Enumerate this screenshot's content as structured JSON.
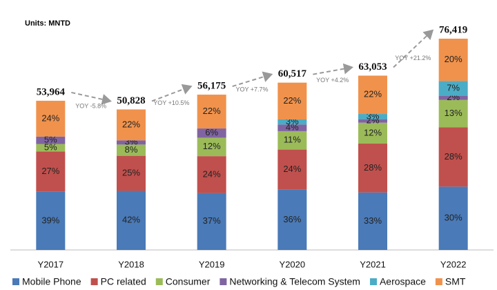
{
  "chart_data": {
    "type": "stacked-bar",
    "title": "Units: MNTD",
    "categories": [
      "Y2017",
      "Y2018",
      "Y2019",
      "Y2020",
      "Y2021",
      "Y2022"
    ],
    "totals": {
      "values": [
        53964,
        50828,
        56175,
        60517,
        63053,
        76419
      ],
      "value_labels": [
        "53,964",
        "50,828",
        "56,175",
        "60,517",
        "63,053",
        "76,419"
      ]
    },
    "annotations": [
      "YOY -5.8%",
      "YOY +10.5%",
      "YOY +7.7%",
      "YOY +4.2%",
      "YOY +21.2%"
    ],
    "series": [
      {
        "name": "Mobile Phone",
        "color": "#4a7ab7",
        "values": [
          39,
          42,
          37,
          36,
          33,
          30
        ],
        "value_labels": [
          "39%",
          "42%",
          "37%",
          "36%",
          "33%",
          "30%"
        ]
      },
      {
        "name": "PC related",
        "color": "#c0504d",
        "values": [
          27,
          25,
          24,
          24,
          28,
          28
        ],
        "value_labels": [
          "27%",
          "25%",
          "24%",
          "24%",
          "28%",
          "28%"
        ]
      },
      {
        "name": "Consumer",
        "color": "#9bbb59",
        "values": [
          5,
          8,
          12,
          11,
          12,
          13
        ],
        "value_labels": [
          "5%",
          "8%",
          "12%",
          "11%",
          "12%",
          "13%"
        ]
      },
      {
        "name": "Networking & Telecom System",
        "color": "#8064a2",
        "values": [
          5,
          3,
          6,
          4,
          2,
          2
        ],
        "value_labels": [
          "5%",
          "3%",
          "6%",
          "4%",
          "2%",
          "2%"
        ]
      },
      {
        "name": "Aerospace",
        "color": "#4bacc6",
        "values": [
          null,
          null,
          null,
          3,
          3,
          7
        ],
        "value_labels": [
          null,
          null,
          null,
          "3%",
          "3%",
          "7%"
        ]
      },
      {
        "name": "SMT",
        "color": "#f0924c",
        "values": [
          24,
          22,
          22,
          22,
          22,
          20
        ],
        "value_labels": [
          "24%",
          "22%",
          "22%",
          "22%",
          "22%",
          "20%"
        ]
      }
    ]
  }
}
